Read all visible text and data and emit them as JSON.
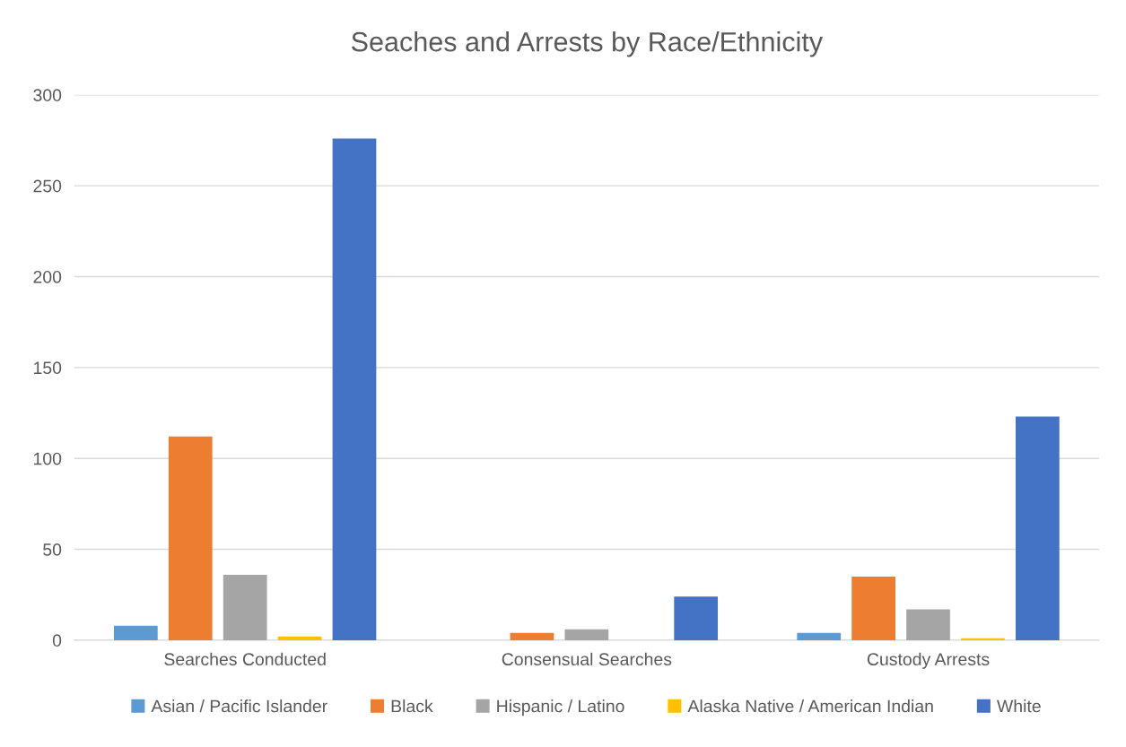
{
  "chart_data": {
    "type": "bar",
    "title": "Seaches and Arrests by Race/Ethnicity",
    "categories": [
      "Searches Conducted",
      "Consensual Searches",
      "Custody Arrests"
    ],
    "series": [
      {
        "name": "Asian / Pacific Islander",
        "color": "#5b9bd5",
        "values": [
          8,
          0,
          4
        ]
      },
      {
        "name": "Black",
        "color": "#ed7d31",
        "values": [
          112,
          4,
          35
        ]
      },
      {
        "name": "Hispanic / Latino",
        "color": "#a5a5a5",
        "values": [
          36,
          6,
          17
        ]
      },
      {
        "name": "Alaska Native / American Indian",
        "color": "#ffc000",
        "values": [
          2,
          0,
          1
        ]
      },
      {
        "name": "White",
        "color": "#4472c4",
        "values": [
          276,
          24,
          123
        ]
      }
    ],
    "ylim": [
      0,
      300
    ],
    "yticks": [
      0,
      50,
      100,
      150,
      200,
      250,
      300
    ],
    "grid": "y",
    "legend": "bottom"
  }
}
